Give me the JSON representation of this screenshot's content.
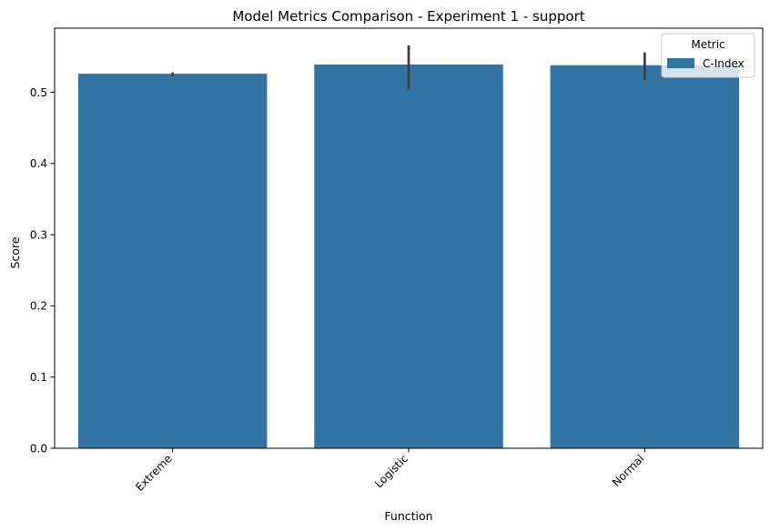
{
  "chart_data": {
    "type": "bar",
    "title": "Model Metrics Comparison - Experiment 1 - support",
    "xlabel": "Function",
    "ylabel": "Score",
    "categories": [
      "Extreme",
      "Logistic",
      "Normal"
    ],
    "series": [
      {
        "name": "C-Index",
        "color": "#3274a1",
        "values": [
          0.526,
          0.539,
          0.538
        ],
        "error_low": [
          0.523,
          0.504,
          0.517
        ],
        "error_high": [
          0.528,
          0.566,
          0.556
        ]
      }
    ],
    "ylim": [
      0,
      0.59
    ],
    "yticks": [
      0.0,
      0.1,
      0.2,
      0.3,
      0.4,
      0.5
    ],
    "ytick_labels": [
      "0.0",
      "0.1",
      "0.2",
      "0.3",
      "0.4",
      "0.5"
    ],
    "grid": false,
    "legend": {
      "title": "Metric",
      "placement": "top-right"
    }
  }
}
